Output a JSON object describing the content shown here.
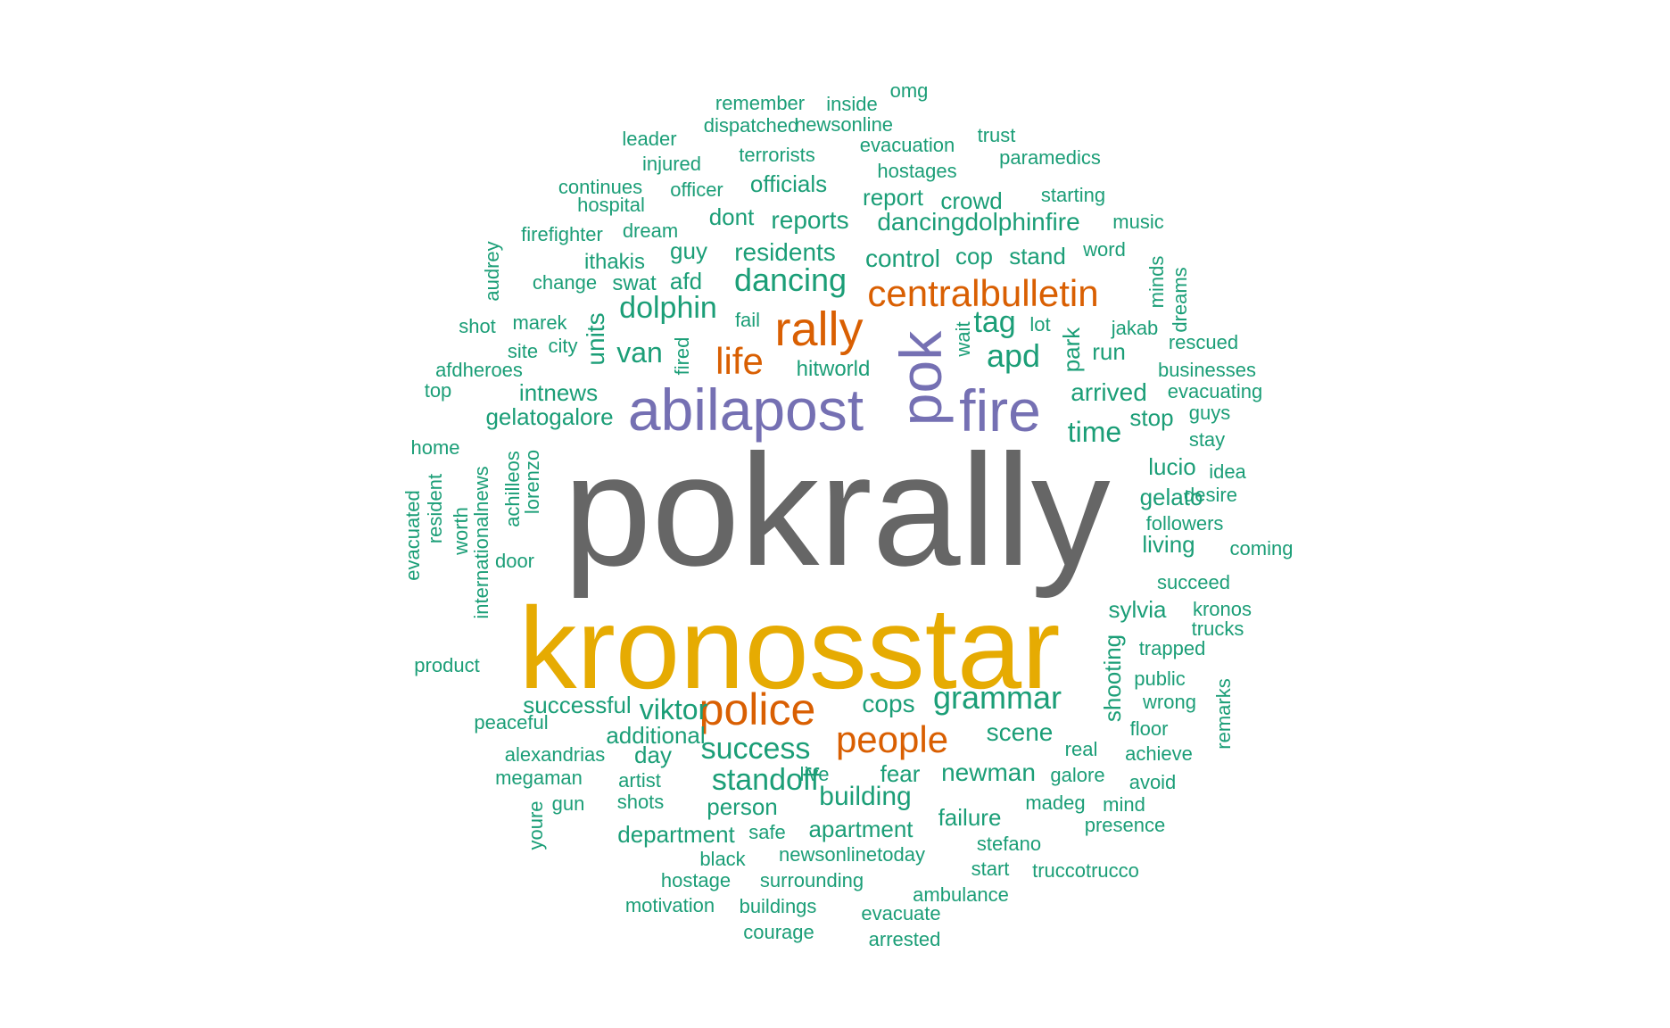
{
  "colors": {
    "gray": "#666666",
    "gold": "#E6AB02",
    "purple": "#7570B3",
    "orange": "#D95F02",
    "teal": "#1B9E77"
  },
  "words": [
    {
      "text": "pokrally",
      "color": "gray"
    },
    {
      "text": "kronosstar",
      "color": "gold"
    },
    {
      "text": "abilapost",
      "color": "purple"
    },
    {
      "text": "pok",
      "color": "purple"
    },
    {
      "text": "fire",
      "color": "purple"
    },
    {
      "text": "rally",
      "color": "orange"
    },
    {
      "text": "centralbulletin",
      "color": "orange"
    },
    {
      "text": "police",
      "color": "orange"
    },
    {
      "text": "people",
      "color": "orange"
    },
    {
      "text": "life",
      "color": "orange"
    },
    {
      "text": "grammar",
      "color": "teal"
    },
    {
      "text": "success",
      "color": "teal"
    },
    {
      "text": "standoff",
      "color": "teal"
    },
    {
      "text": "dancing",
      "color": "teal"
    },
    {
      "text": "dolphin",
      "color": "teal"
    },
    {
      "text": "apd",
      "color": "teal"
    },
    {
      "text": "tag",
      "color": "teal"
    },
    {
      "text": "van",
      "color": "teal"
    },
    {
      "text": "time",
      "color": "teal"
    },
    {
      "text": "viktor",
      "color": "teal"
    },
    {
      "text": "building",
      "color": "teal"
    },
    {
      "text": "scene",
      "color": "teal"
    },
    {
      "text": "arrived",
      "color": "teal"
    },
    {
      "text": "newman",
      "color": "teal"
    },
    {
      "text": "shooting",
      "color": "teal"
    },
    {
      "text": "cops",
      "color": "teal"
    },
    {
      "text": "residents",
      "color": "teal"
    },
    {
      "text": "reports",
      "color": "teal"
    },
    {
      "text": "dancingdolphinfire",
      "color": "teal"
    },
    {
      "text": "control",
      "color": "teal"
    },
    {
      "text": "units",
      "color": "teal"
    },
    {
      "text": "additional",
      "color": "teal"
    },
    {
      "text": "successful",
      "color": "teal"
    },
    {
      "text": "person",
      "color": "teal"
    },
    {
      "text": "apartment",
      "color": "teal"
    },
    {
      "text": "department",
      "color": "teal"
    },
    {
      "text": "failure",
      "color": "teal"
    },
    {
      "text": "fear",
      "color": "teal"
    },
    {
      "text": "day",
      "color": "teal"
    },
    {
      "text": "park",
      "color": "teal"
    },
    {
      "text": "intnews",
      "color": "teal"
    },
    {
      "text": "gelatogalore",
      "color": "teal"
    },
    {
      "text": "run",
      "color": "teal"
    },
    {
      "text": "stop",
      "color": "teal"
    },
    {
      "text": "lucio",
      "color": "teal"
    },
    {
      "text": "gelato",
      "color": "teal"
    },
    {
      "text": "living",
      "color": "teal"
    },
    {
      "text": "sylvia",
      "color": "teal"
    },
    {
      "text": "officials",
      "color": "teal"
    },
    {
      "text": "report",
      "color": "teal"
    },
    {
      "text": "crowd",
      "color": "teal"
    },
    {
      "text": "dont",
      "color": "teal"
    },
    {
      "text": "guy",
      "color": "teal"
    },
    {
      "text": "afd",
      "color": "teal"
    },
    {
      "text": "swat",
      "color": "teal"
    },
    {
      "text": "cop",
      "color": "teal"
    },
    {
      "text": "stand",
      "color": "teal"
    },
    {
      "text": "ithakis",
      "color": "teal"
    },
    {
      "text": "hitworld",
      "color": "teal"
    },
    {
      "text": "wait",
      "color": "teal"
    },
    {
      "text": "fired",
      "color": "teal"
    },
    {
      "text": "remember",
      "color": "teal"
    },
    {
      "text": "inside",
      "color": "teal"
    },
    {
      "text": "omg",
      "color": "teal"
    },
    {
      "text": "dispatched",
      "color": "teal"
    },
    {
      "text": "newsonline",
      "color": "teal"
    },
    {
      "text": "leader",
      "color": "teal"
    },
    {
      "text": "evacuation",
      "color": "teal"
    },
    {
      "text": "trust",
      "color": "teal"
    },
    {
      "text": "terrorists",
      "color": "teal"
    },
    {
      "text": "injured",
      "color": "teal"
    },
    {
      "text": "paramedics",
      "color": "teal"
    },
    {
      "text": "hostages",
      "color": "teal"
    },
    {
      "text": "continues",
      "color": "teal"
    },
    {
      "text": "officer",
      "color": "teal"
    },
    {
      "text": "hospital",
      "color": "teal"
    },
    {
      "text": "starting",
      "color": "teal"
    },
    {
      "text": "music",
      "color": "teal"
    },
    {
      "text": "firefighter",
      "color": "teal"
    },
    {
      "text": "dream",
      "color": "teal"
    },
    {
      "text": "word",
      "color": "teal"
    },
    {
      "text": "audrey",
      "color": "teal"
    },
    {
      "text": "minds",
      "color": "teal"
    },
    {
      "text": "dreams",
      "color": "teal"
    },
    {
      "text": "change",
      "color": "teal"
    },
    {
      "text": "shot",
      "color": "teal"
    },
    {
      "text": "marek",
      "color": "teal"
    },
    {
      "text": "fail",
      "color": "teal"
    },
    {
      "text": "lot",
      "color": "teal"
    },
    {
      "text": "jakab",
      "color": "teal"
    },
    {
      "text": "rescued",
      "color": "teal"
    },
    {
      "text": "site",
      "color": "teal"
    },
    {
      "text": "city",
      "color": "teal"
    },
    {
      "text": "afdheroes",
      "color": "teal"
    },
    {
      "text": "businesses",
      "color": "teal"
    },
    {
      "text": "top",
      "color": "teal"
    },
    {
      "text": "evacuating",
      "color": "teal"
    },
    {
      "text": "guys",
      "color": "teal"
    },
    {
      "text": "stay",
      "color": "teal"
    },
    {
      "text": "home",
      "color": "teal"
    },
    {
      "text": "idea",
      "color": "teal"
    },
    {
      "text": "desire",
      "color": "teal"
    },
    {
      "text": "evacuated",
      "color": "teal"
    },
    {
      "text": "resident",
      "color": "teal"
    },
    {
      "text": "worth",
      "color": "teal"
    },
    {
      "text": "internationalnews",
      "color": "teal"
    },
    {
      "text": "achilleos",
      "color": "teal"
    },
    {
      "text": "lorenzo",
      "color": "teal"
    },
    {
      "text": "followers",
      "color": "teal"
    },
    {
      "text": "door",
      "color": "teal"
    },
    {
      "text": "coming",
      "color": "teal"
    },
    {
      "text": "succeed",
      "color": "teal"
    },
    {
      "text": "kronos",
      "color": "teal"
    },
    {
      "text": "trucks",
      "color": "teal"
    },
    {
      "text": "product",
      "color": "teal"
    },
    {
      "text": "trapped",
      "color": "teal"
    },
    {
      "text": "public",
      "color": "teal"
    },
    {
      "text": "remarks",
      "color": "teal"
    },
    {
      "text": "wrong",
      "color": "teal"
    },
    {
      "text": "peaceful",
      "color": "teal"
    },
    {
      "text": "floor",
      "color": "teal"
    },
    {
      "text": "alexandrias",
      "color": "teal"
    },
    {
      "text": "real",
      "color": "teal"
    },
    {
      "text": "achieve",
      "color": "teal"
    },
    {
      "text": "megaman",
      "color": "teal"
    },
    {
      "text": "artist",
      "color": "teal"
    },
    {
      "text": "live",
      "color": "teal"
    },
    {
      "text": "galore",
      "color": "teal"
    },
    {
      "text": "avoid",
      "color": "teal"
    },
    {
      "text": "gun",
      "color": "teal"
    },
    {
      "text": "shots",
      "color": "teal"
    },
    {
      "text": "madeg",
      "color": "teal"
    },
    {
      "text": "mind",
      "color": "teal"
    },
    {
      "text": "youre",
      "color": "teal"
    },
    {
      "text": "safe",
      "color": "teal"
    },
    {
      "text": "presence",
      "color": "teal"
    },
    {
      "text": "black",
      "color": "teal"
    },
    {
      "text": "newsonlinetoday",
      "color": "teal"
    },
    {
      "text": "stefano",
      "color": "teal"
    },
    {
      "text": "hostage",
      "color": "teal"
    },
    {
      "text": "surrounding",
      "color": "teal"
    },
    {
      "text": "start",
      "color": "teal"
    },
    {
      "text": "truccotrucco",
      "color": "teal"
    },
    {
      "text": "ambulance",
      "color": "teal"
    },
    {
      "text": "motivation",
      "color": "teal"
    },
    {
      "text": "buildings",
      "color": "teal"
    },
    {
      "text": "evacuate",
      "color": "teal"
    },
    {
      "text": "courage",
      "color": "teal"
    },
    {
      "text": "arrested",
      "color": "teal"
    }
  ]
}
